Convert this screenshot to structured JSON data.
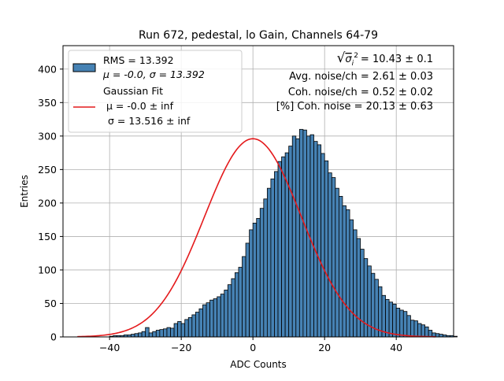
{
  "chart_data": {
    "type": "bar",
    "title": "Run 672, pedestal, lo Gain, Channels 64-79",
    "xlabel": "ADC Counts",
    "ylabel": "Entries",
    "xlim": [
      -53,
      56
    ],
    "ylim": [
      0,
      435
    ],
    "grid": true,
    "legend_position": "top-left",
    "x_ticks": [
      -40,
      -20,
      0,
      20,
      40
    ],
    "y_ticks": [
      0,
      50,
      100,
      150,
      200,
      250,
      300,
      350,
      400
    ],
    "bin_edges_start": -40,
    "bin_width": 1,
    "values": [
      1,
      2,
      2,
      2,
      3,
      3,
      4,
      5,
      6,
      8,
      14,
      6,
      8,
      10,
      11,
      12,
      14,
      13,
      20,
      23,
      20,
      26,
      29,
      33,
      37,
      42,
      48,
      51,
      55,
      57,
      60,
      64,
      70,
      78,
      87,
      96,
      104,
      120,
      140,
      160,
      170,
      177,
      192,
      206,
      222,
      236,
      247,
      262,
      269,
      275,
      285,
      300,
      296,
      310,
      309,
      300,
      302,
      292,
      287,
      274,
      263,
      245,
      238,
      222,
      210,
      196,
      190,
      175,
      160,
      147,
      131,
      117,
      106,
      95,
      86,
      75,
      62,
      56,
      52,
      49,
      43,
      40,
      38,
      32,
      25,
      24,
      20,
      18,
      15,
      10,
      6,
      5,
      4,
      3,
      2,
      2,
      1
    ],
    "series": [
      {
        "name": "RMS = 13.392",
        "label_line2": "μ = -0.0, σ = 13.392",
        "kind": "histogram",
        "color": "#4682b4",
        "edge_color": "#000000"
      },
      {
        "name": "Gaussian Fit",
        "label_line2": "μ = -0.0 ± inf",
        "label_line3": "σ = 13.516 ± inf",
        "kind": "line",
        "color": "#e41a1c",
        "amplitude": 296,
        "mean": 0.0,
        "sigma": 13.516,
        "x_range": [
          -49,
          51
        ]
      }
    ],
    "annotations": {
      "line1_prefix": "√",
      "line1_symbol": "σ",
      "line1_sub": "i",
      "line1_sup": "2",
      "line1_value": "= 10.43 ± 0.1",
      "line2": "Avg. noise/ch = 2.61 ± 0.03",
      "line3": "Coh. noise/ch = 0.52 ± 0.02",
      "line4": "[%] Coh. noise = 20.13 ± 0.63"
    }
  }
}
